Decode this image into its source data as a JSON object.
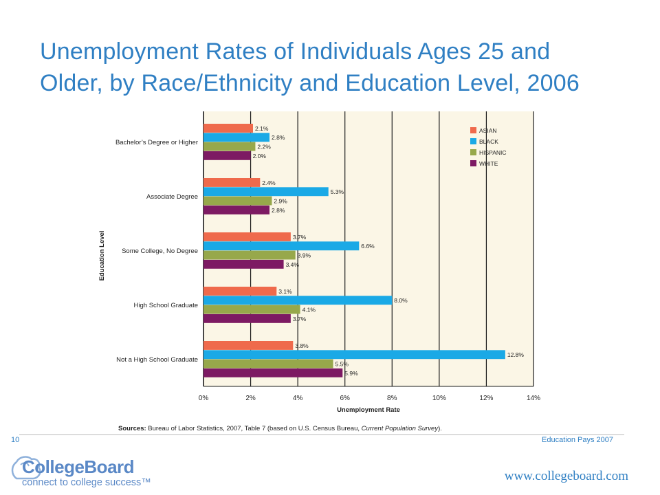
{
  "slide": {
    "title_line1": "Unemployment Rates of Individuals Ages 25 and",
    "title_line2": "Older, by Race/Ethnicity and Education Level, 2006",
    "sources_label": "Sources:",
    "sources_text1": " Bureau of Labor Statistics, 2007, Table 7 (based on U.S. Census Bureau, ",
    "sources_italic": "Current Population Survey",
    "sources_text2": ").",
    "slide_number": "10",
    "publication": "Education Pays 2007",
    "logo_name": "CollegeBoard",
    "logo_tagline": "connect to college success™",
    "url": "www.collegeboard.com"
  },
  "colors": {
    "title": "#2f7fc3",
    "plot_background": "#fbf6e6",
    "asian": "#ef6a4c",
    "black": "#1aa9e6",
    "hispanic": "#97a84b",
    "white": "#7d1a63"
  },
  "chart_data": {
    "type": "bar",
    "orientation": "horizontal",
    "xlabel": "Unemployment Rate",
    "ylabel": "Education Level",
    "xlim": [
      0,
      14
    ],
    "xticks": [
      "0%",
      "2%",
      "4%",
      "6%",
      "8%",
      "10%",
      "12%",
      "14%"
    ],
    "grid": "vertical",
    "legend_position": "top-right",
    "categories": [
      "Bachelor’s Degree or Higher",
      "Associate Degree",
      "Some College, No Degree",
      "High School Graduate",
      "Not a High School Graduate"
    ],
    "series": [
      {
        "name": "ASIAN",
        "color": "#ef6a4c",
        "values": [
          2.1,
          2.4,
          3.7,
          3.1,
          3.8
        ],
        "labels": [
          "2.1%",
          "2.4%",
          "3.7%",
          "3.1%",
          "3.8%"
        ]
      },
      {
        "name": "BLACK",
        "color": "#1aa9e6",
        "values": [
          2.8,
          5.3,
          6.6,
          8.0,
          12.8
        ],
        "labels": [
          "2.8%",
          "5.3%",
          "6.6%",
          "8.0%",
          "12.8%"
        ]
      },
      {
        "name": "HISPANIC",
        "color": "#97a84b",
        "values": [
          2.2,
          2.9,
          3.9,
          4.1,
          5.5
        ],
        "labels": [
          "2.2%",
          "2.9%",
          "3.9%",
          "4.1%",
          "5.5%"
        ]
      },
      {
        "name": "WHITE",
        "color": "#7d1a63",
        "values": [
          2.0,
          2.8,
          3.4,
          3.7,
          5.9
        ],
        "labels": [
          "2.0%",
          "2.8%",
          "3.4%",
          "3.7%",
          "5.9%"
        ]
      }
    ]
  }
}
